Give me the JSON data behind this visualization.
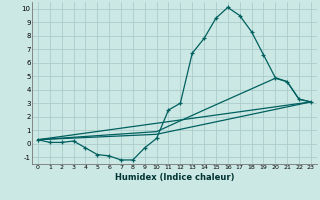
{
  "xlabel": "Humidex (Indice chaleur)",
  "background_color": "#cce8e4",
  "grid_color": "#aaccca",
  "line_color": "#006060",
  "xlim": [
    -0.5,
    23.5
  ],
  "ylim": [
    -1.5,
    10.5
  ],
  "xticks": [
    0,
    1,
    2,
    3,
    4,
    5,
    6,
    7,
    8,
    9,
    10,
    11,
    12,
    13,
    14,
    15,
    16,
    17,
    18,
    19,
    20,
    21,
    22,
    23
  ],
  "yticks": [
    -1,
    0,
    1,
    2,
    3,
    4,
    5,
    6,
    7,
    8,
    9,
    10
  ],
  "line1_x": [
    0,
    1,
    2,
    3,
    4,
    5,
    6,
    7,
    8,
    9,
    10,
    11,
    12,
    13,
    14,
    15,
    16,
    17,
    18,
    19,
    20,
    21,
    22,
    23
  ],
  "line1_y": [
    0.3,
    0.1,
    0.1,
    0.2,
    -0.3,
    -0.8,
    -0.9,
    -1.2,
    -1.2,
    -0.3,
    0.4,
    2.5,
    3.0,
    6.7,
    7.8,
    9.3,
    10.1,
    9.5,
    8.3,
    6.6,
    4.9,
    4.6,
    3.3,
    3.1
  ],
  "line2_x": [
    0,
    23
  ],
  "line2_y": [
    0.3,
    3.1
  ],
  "line3_x": [
    0,
    10,
    23
  ],
  "line3_y": [
    0.3,
    0.7,
    3.1
  ],
  "line4_x": [
    0,
    10,
    14,
    20,
    21,
    22,
    23
  ],
  "line4_y": [
    0.3,
    0.9,
    2.5,
    4.85,
    4.6,
    3.3,
    3.1
  ]
}
